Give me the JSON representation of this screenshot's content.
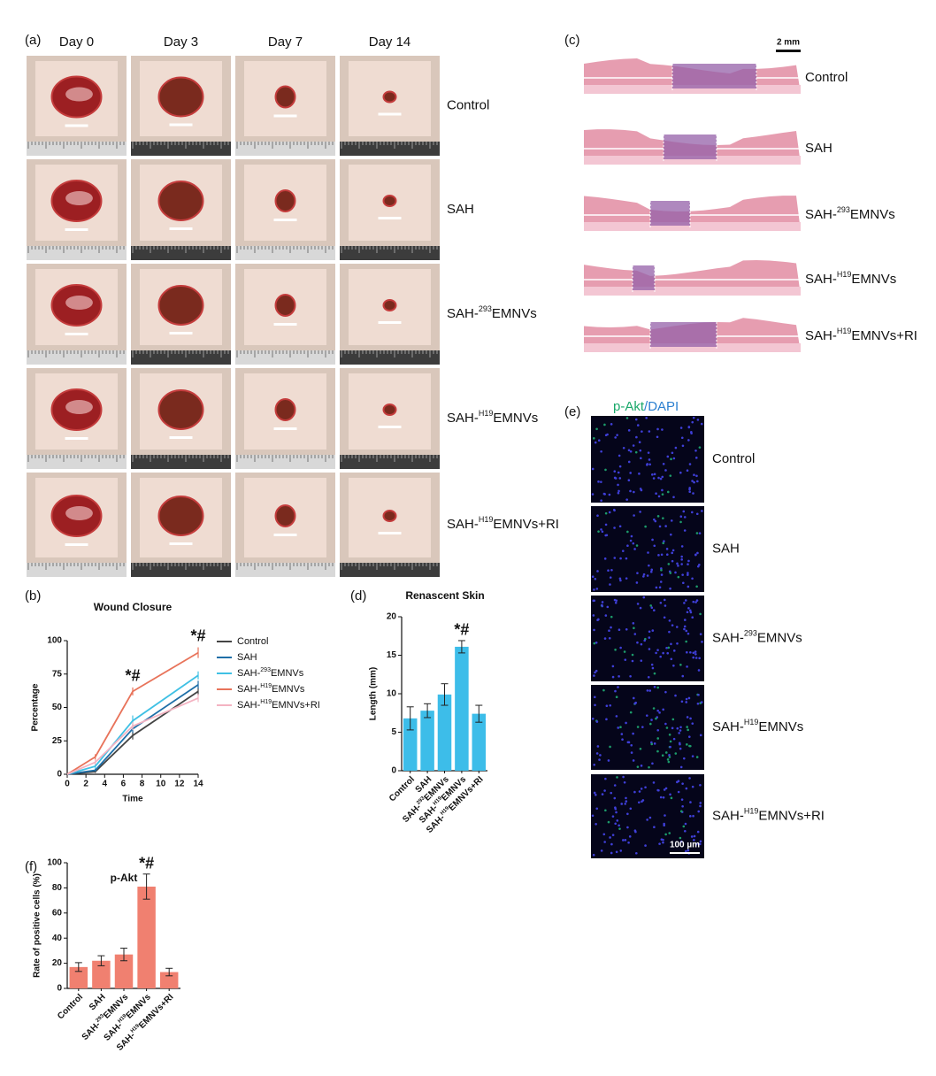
{
  "panel_a": {
    "label": "(a)",
    "columns": [
      "Day 0",
      "Day 3",
      "Day 7",
      "Day 14"
    ],
    "rows": [
      [
        "Control"
      ],
      [
        "SAH"
      ],
      [
        "SAH-",
        "293",
        "EMNVs"
      ],
      [
        "SAH-",
        "H19",
        "EMNVs"
      ],
      [
        "SAH-",
        "H19",
        "EMNVs+RI"
      ]
    ]
  },
  "panel_c": {
    "label": "(c)",
    "scale": "2 mm",
    "rows": [
      [
        "Control"
      ],
      [
        "SAH"
      ],
      [
        "SAH-",
        "293",
        "EMNVs"
      ],
      [
        "SAH-",
        "H19",
        "EMNVs"
      ],
      [
        "SAH-",
        "H19",
        "EMNVs+RI"
      ]
    ]
  },
  "panel_e": {
    "label": "(e)",
    "title": [
      "p-Akt",
      "/",
      "DAPI"
    ],
    "scale": "100 µm",
    "rows": [
      [
        "Control"
      ],
      [
        "SAH"
      ],
      [
        "SAH-",
        "293",
        "EMNVs"
      ],
      [
        "SAH-",
        "H19",
        "EMNVs"
      ],
      [
        "SAH-",
        "H19",
        "EMNVs+RI"
      ]
    ]
  },
  "chart_data": [
    {
      "type": "line",
      "label": "(b)",
      "title": "Wound Closure",
      "x_label": "Time",
      "y_label": "Percentage",
      "x": [
        0,
        3,
        7,
        14
      ],
      "xlim": [
        0,
        14
      ],
      "xticks": [
        0,
        2,
        4,
        6,
        8,
        10,
        12,
        14
      ],
      "ylim": [
        0,
        100
      ],
      "yticks": [
        0,
        25,
        50,
        75,
        100
      ],
      "series": [
        {
          "name": [
            "Control"
          ],
          "color": "#444444",
          "values": [
            0,
            2,
            29,
            62
          ],
          "errors": [
            0,
            1,
            3,
            3
          ]
        },
        {
          "name": [
            "SAH"
          ],
          "color": "#1f6fa8",
          "values": [
            0,
            3,
            34,
            67
          ],
          "errors": [
            0,
            1,
            3,
            3
          ]
        },
        {
          "name": [
            "SAH-",
            "293",
            "EMNVs"
          ],
          "color": "#3fc0e4",
          "values": [
            0,
            6,
            40,
            74
          ],
          "errors": [
            0,
            2,
            4,
            3
          ]
        },
        {
          "name": [
            "SAH-",
            "H19",
            "EMNVs"
          ],
          "color": "#e8735a",
          "values": [
            0,
            13,
            62,
            91
          ],
          "errors": [
            0,
            2,
            3,
            4
          ]
        },
        {
          "name": [
            "SAH-",
            "H19",
            "EMNVs+RI"
          ],
          "color": "#f4b3c2",
          "values": [
            0,
            9,
            36,
            57
          ],
          "errors": [
            0,
            2,
            3,
            3
          ]
        }
      ],
      "annotations": [
        {
          "text": "*#",
          "x": 7
        },
        {
          "text": "*#",
          "x": 14
        }
      ]
    },
    {
      "type": "bar",
      "label": "(d)",
      "title": "Renascent Skin",
      "y_label": "Length (mm)",
      "categories": [
        [
          "Control"
        ],
        [
          "SAH"
        ],
        [
          "SAH-",
          "293",
          "EMNVs"
        ],
        [
          "SAH-",
          "H19",
          "EMNVs"
        ],
        [
          "SAH-",
          "H19",
          "EMNVs+RI"
        ]
      ],
      "values": [
        6.8,
        7.8,
        9.9,
        16.1,
        7.4
      ],
      "errors": [
        1.5,
        0.9,
        1.4,
        0.8,
        1.1
      ],
      "color": "#3dbde9",
      "ylim": [
        0,
        20
      ],
      "yticks": [
        0,
        5,
        10,
        15,
        20
      ],
      "annotations": [
        {
          "text": "*#",
          "category": [
            "SAH-",
            "H19",
            "EMNVs"
          ]
        }
      ]
    },
    {
      "type": "bar",
      "label": "(f)",
      "title": "p-Akt",
      "y_label": "Rate of positive cells (%)",
      "categories": [
        [
          "Control"
        ],
        [
          "SAH"
        ],
        [
          "SAH-",
          "293",
          "EMNVs"
        ],
        [
          "SAH-",
          "H19",
          "EMNVs"
        ],
        [
          "SAH-",
          "H19",
          "EMNVs+RI"
        ]
      ],
      "values": [
        17,
        22,
        27,
        81,
        13
      ],
      "errors": [
        3.5,
        4,
        5,
        10,
        3
      ],
      "color": "#f08070",
      "ylim": [
        0,
        100
      ],
      "yticks": [
        0,
        20,
        40,
        60,
        80,
        100
      ],
      "annotations": [
        {
          "text": "*#",
          "category": [
            "SAH-",
            "H19",
            "EMNVs"
          ]
        }
      ]
    }
  ]
}
